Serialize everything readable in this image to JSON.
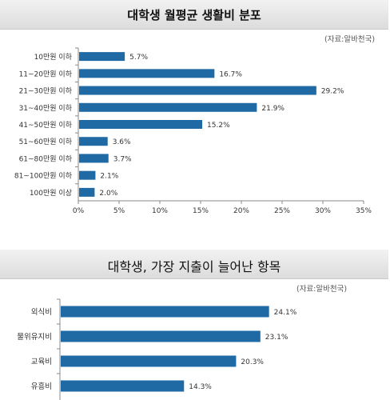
{
  "chart_data": [
    {
      "type": "bar",
      "title": "대학생 월평균 생활비 분포",
      "source": "(자료:알바천국)",
      "categories": [
        "10만원 이하",
        "11~20만원 이하",
        "21~30만원 이하",
        "31~40만원 이하",
        "41~50만원 이하",
        "51~60만원 이하",
        "61~80만원 이하",
        "81~100만원 이하",
        "100만원 이상"
      ],
      "values": [
        5.7,
        16.7,
        29.2,
        21.9,
        15.2,
        3.6,
        3.7,
        2.1,
        2.0
      ],
      "value_labels": [
        "5.7%",
        "16.7%",
        "29.2%",
        "21.9%",
        "15.2%",
        "3.6%",
        "3.7%",
        "2.1%",
        "2.0%"
      ],
      "xlim": [
        0,
        35
      ],
      "xticks": [
        "0%",
        "5%",
        "10%",
        "15%",
        "20%",
        "25%",
        "30%",
        "35%"
      ],
      "orientation": "horizontal",
      "bar_color": "#1f6aa5"
    },
    {
      "type": "bar",
      "title": "대학생, 가장 지출이 늘어난 항목",
      "source": "(자료:알바천국)",
      "categories": [
        "외식비",
        "물위유지비",
        "교육비",
        "유흥비"
      ],
      "values": [
        24.1,
        23.1,
        20.3,
        14.3
      ],
      "value_labels": [
        "24.1%",
        "23.1%",
        "20.3%",
        "14.3%"
      ],
      "xlim": [
        0,
        35
      ],
      "orientation": "horizontal",
      "bar_color": "#1f6aa5"
    }
  ]
}
